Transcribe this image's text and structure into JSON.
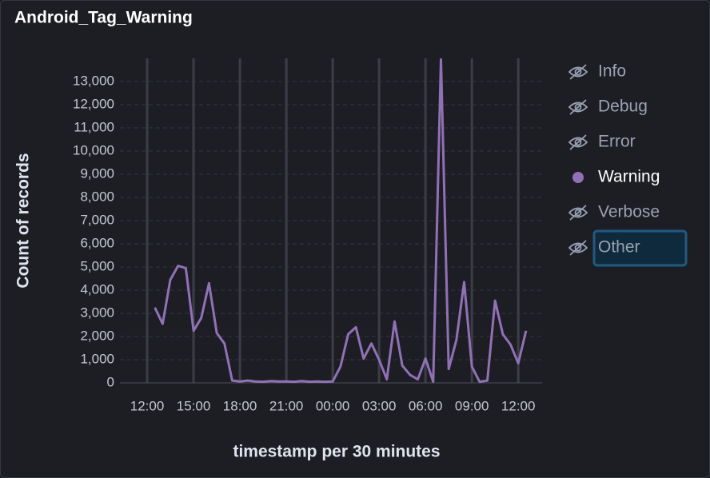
{
  "chart_data": {
    "type": "line",
    "title": "Android_Tag_Warning",
    "x_label": "timestamp per 30 minutes",
    "y_label": "Count of records",
    "categories": [
      null,
      null,
      "12:00",
      null,
      null,
      null,
      null,
      null,
      "15:00",
      null,
      null,
      null,
      null,
      null,
      "18:00",
      null,
      null,
      null,
      null,
      null,
      "21:00",
      null,
      null,
      null,
      null,
      null,
      "00:00",
      null,
      null,
      null,
      null,
      null,
      "03:00",
      null,
      null,
      null,
      null,
      null,
      "06:00",
      null,
      null,
      null,
      null,
      null,
      "09:00",
      null,
      null,
      null,
      null,
      null,
      "12:00",
      null,
      null,
      null
    ],
    "values": [
      null,
      null,
      null,
      3250,
      2550,
      4450,
      5050,
      4950,
      2250,
      2800,
      4300,
      2150,
      1700,
      100,
      60,
      100,
      60,
      50,
      80,
      60,
      60,
      50,
      80,
      50,
      60,
      50,
      60,
      700,
      2100,
      2400,
      1050,
      1700,
      1000,
      150,
      2650,
      750,
      350,
      150,
      1050,
      50,
      13950,
      600,
      1850,
      4350,
      700,
      50,
      100,
      3550,
      2100,
      1650,
      850,
      2250,
      null,
      null
    ],
    "color": "#9170b8",
    "ylim": [
      0,
      14000
    ],
    "yticks": [
      0,
      {
        "value": 1000,
        "label": "1,000"
      },
      {
        "value": 2000,
        "label": "2,000"
      },
      {
        "value": 3000,
        "label": "3,000"
      },
      {
        "value": 4000,
        "label": "4,000"
      },
      {
        "value": 5000,
        "label": "5,000"
      },
      {
        "value": 6000,
        "label": "6,000"
      },
      {
        "value": 7000,
        "label": "7,000"
      },
      {
        "value": 8000,
        "label": "8,000"
      },
      {
        "value": 9000,
        "label": "9,000"
      },
      {
        "value": 10000,
        "label": "10,000"
      },
      {
        "value": 11000,
        "label": "11,000"
      },
      {
        "value": 12000,
        "label": "12,000"
      },
      {
        "value": 13000,
        "label": "13,000"
      }
    ],
    "grid": true,
    "legend_position": "right",
    "legend": [
      {
        "name": "Info",
        "hidden": true
      },
      {
        "name": "Debug",
        "hidden": true
      },
      {
        "name": "Error",
        "hidden": true
      },
      {
        "name": "Warning",
        "hidden": false
      },
      {
        "name": "Verbose",
        "hidden": true
      },
      {
        "name": "Other",
        "hidden": true,
        "focused": true
      }
    ]
  }
}
